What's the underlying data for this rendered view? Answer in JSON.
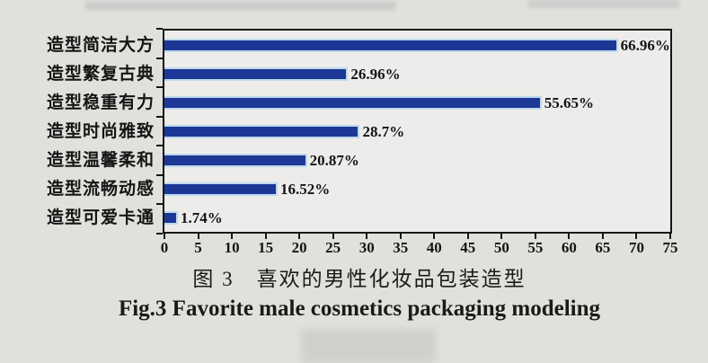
{
  "figure": {
    "caption_cn": "图 3　喜欢的男性化妆品包装造型",
    "caption_en": "Fig.3 Favorite male cosmetics packaging modeling"
  },
  "chart_data": {
    "type": "bar",
    "orientation": "horizontal",
    "title": "图 3　喜欢的男性化妆品包装造型",
    "title_en": "Fig.3 Favorite male cosmetics packaging modeling",
    "categories": [
      "造型简洁大方",
      "造型繁复古典",
      "造型稳重有力",
      "造型时尚雅致",
      "造型温馨柔和",
      "造型流畅动感",
      "造型可爱卡通"
    ],
    "values": [
      66.96,
      26.96,
      55.65,
      28.7,
      20.87,
      16.52,
      1.74
    ],
    "value_labels": [
      "66.96%",
      "26.96%",
      "55.65%",
      "28.7%",
      "20.87%",
      "16.52%",
      "1.74%"
    ],
    "x_ticks": [
      0,
      5,
      10,
      15,
      20,
      25,
      30,
      35,
      40,
      45,
      50,
      55,
      60,
      65,
      70,
      75
    ],
    "xlim": [
      0,
      75
    ],
    "grid": false,
    "legend": false,
    "bar_color": "#1d3796",
    "bar_edge_color": "#bcd9ee",
    "axis_color": "#161616",
    "plot_background": "#edecea",
    "page_background": "#e1e0dc"
  }
}
